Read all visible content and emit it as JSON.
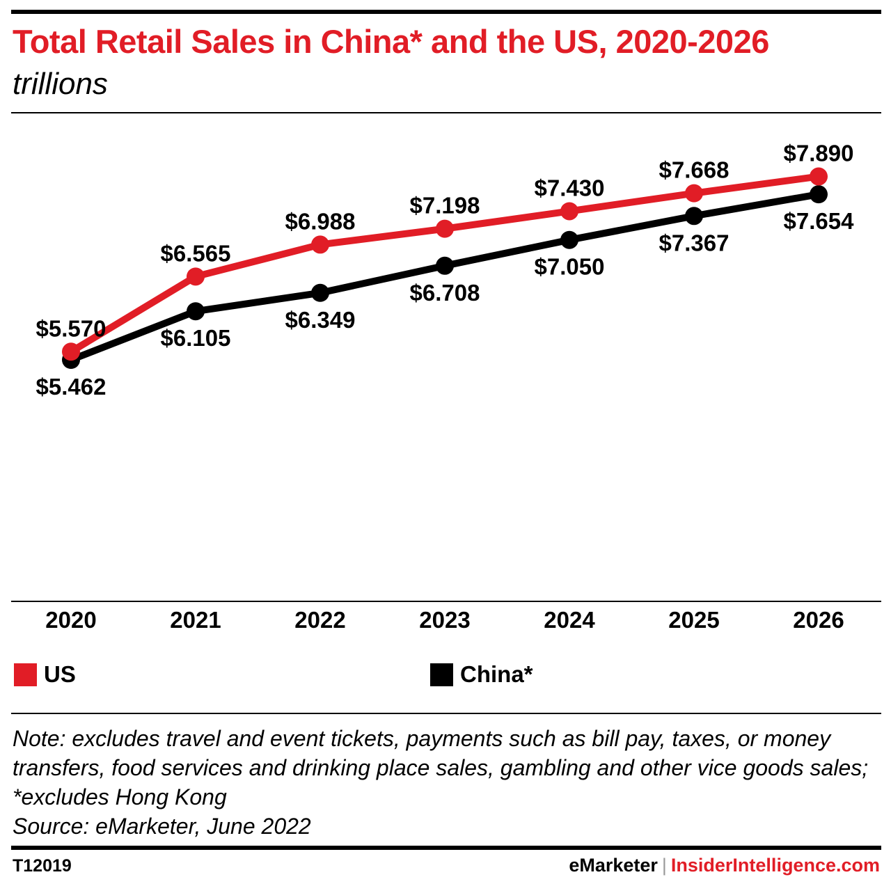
{
  "header": {
    "title": "Total Retail Sales in China* and the US, 2020-2026",
    "subtitle": "trillions"
  },
  "colors": {
    "us": "#e11d26",
    "china": "#000000"
  },
  "chart_data": {
    "type": "line",
    "title": "Total Retail Sales in China* and the US, 2020-2026",
    "subtitle": "trillions",
    "categories": [
      "2020",
      "2021",
      "2022",
      "2023",
      "2024",
      "2025",
      "2026"
    ],
    "series": [
      {
        "name": "US",
        "color": "#e11d26",
        "values": [
          5.57,
          6.565,
          6.988,
          7.198,
          7.43,
          7.668,
          7.89
        ],
        "labels": [
          "$5.570",
          "$6.565",
          "$6.988",
          "$7.198",
          "$7.430",
          "$7.668",
          "$7.890"
        ]
      },
      {
        "name": "China*",
        "color": "#000000",
        "values": [
          5.462,
          6.105,
          6.349,
          6.708,
          7.05,
          7.367,
          7.654
        ],
        "labels": [
          "$5.462",
          "$6.105",
          "$6.349",
          "$6.708",
          "$7.050",
          "$7.367",
          "$7.654"
        ]
      }
    ],
    "grid": false,
    "legend_position": "bottom"
  },
  "legend": {
    "us": "US",
    "china": "China*"
  },
  "note": {
    "text": "Note: excludes travel and event tickets, payments such as bill pay, taxes, or money transfers, food services and drinking place sales, gambling and other vice goods sales; *excludes Hong Kong",
    "source": "Source: eMarketer, June 2022"
  },
  "footer": {
    "id": "T12019",
    "brand": "eMarketer",
    "separator": "|",
    "site": "InsiderIntelligence.com"
  }
}
